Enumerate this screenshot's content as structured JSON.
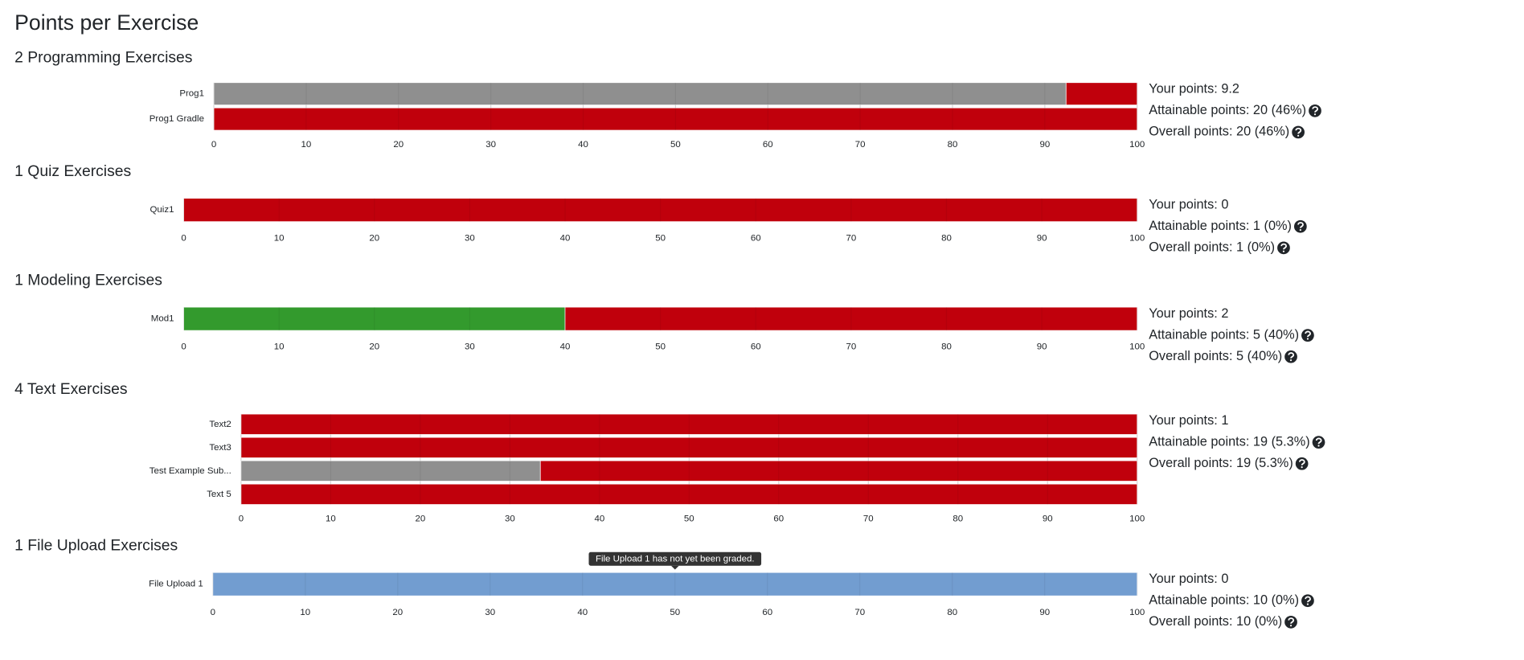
{
  "title": "Points per Exercise",
  "sections": [
    {
      "heading": "2 Programming Exercises",
      "xlim": [
        0,
        100
      ],
      "xticks": [
        0,
        10,
        20,
        30,
        40,
        50,
        60,
        70,
        80,
        90,
        100
      ],
      "bars": [
        {
          "label": "Prog1",
          "segments": [
            {
              "value": 92.3,
              "color": "#8f8f8f"
            },
            {
              "value": 7.7,
              "color": "#c0000c"
            }
          ]
        },
        {
          "label": "Prog1 Gradle",
          "segments": [
            {
              "value": 100,
              "color": "#c0000c"
            }
          ]
        }
      ],
      "stats": [
        "Your points: 9.2",
        "Attainable points: 20 (46%)",
        "Overall points: 20 (46%)"
      ]
    },
    {
      "heading": "1 Quiz Exercises",
      "xlim": [
        0,
        100
      ],
      "xticks": [
        0,
        10,
        20,
        30,
        40,
        50,
        60,
        70,
        80,
        90,
        100
      ],
      "bars": [
        {
          "label": "Quiz1",
          "segments": [
            {
              "value": 100,
              "color": "#c0000c"
            }
          ]
        }
      ],
      "stats": [
        "Your points: 0",
        "Attainable points: 1 (0%)",
        "Overall points: 1 (0%)"
      ]
    },
    {
      "heading": "1 Modeling Exercises",
      "xlim": [
        0,
        100
      ],
      "xticks": [
        0,
        10,
        20,
        30,
        40,
        50,
        60,
        70,
        80,
        90,
        100
      ],
      "bars": [
        {
          "label": "Mod1",
          "segments": [
            {
              "value": 40,
              "color": "#339a2d"
            },
            {
              "value": 60,
              "color": "#c0000c"
            }
          ]
        }
      ],
      "stats": [
        "Your points: 2",
        "Attainable points: 5 (40%)",
        "Overall points: 5 (40%)"
      ]
    },
    {
      "heading": "4 Text Exercises",
      "xlim": [
        0,
        100
      ],
      "xticks": [
        0,
        10,
        20,
        30,
        40,
        50,
        60,
        70,
        80,
        90,
        100
      ],
      "bars": [
        {
          "label": "Text2",
          "segments": [
            {
              "value": 100,
              "color": "#c0000c"
            }
          ]
        },
        {
          "label": "Text3",
          "segments": [
            {
              "value": 100,
              "color": "#c0000c"
            }
          ]
        },
        {
          "label": "Test Example Sub...",
          "segments": [
            {
              "value": 33.4,
              "color": "#8f8f8f"
            },
            {
              "value": 66.6,
              "color": "#c0000c"
            }
          ]
        },
        {
          "label": "Text 5",
          "segments": [
            {
              "value": 100,
              "color": "#c0000c"
            }
          ]
        }
      ],
      "stats": [
        "Your points: 1",
        "Attainable points: 19 (5.3%)",
        "Overall points: 19 (5.3%)"
      ]
    },
    {
      "heading": "1 File Upload Exercises",
      "xlim": [
        0,
        100
      ],
      "xticks": [
        0,
        10,
        20,
        30,
        40,
        50,
        60,
        70,
        80,
        90,
        100
      ],
      "bars": [
        {
          "label": "File Upload 1",
          "segments": [
            {
              "value": 100,
              "color": "#729dd0"
            }
          ]
        }
      ],
      "tooltip": "File Upload 1 has not yet been graded.",
      "stats": [
        "Your points: 0",
        "Attainable points: 10 (0%)",
        "Overall points: 10 (0%)"
      ]
    }
  ]
}
